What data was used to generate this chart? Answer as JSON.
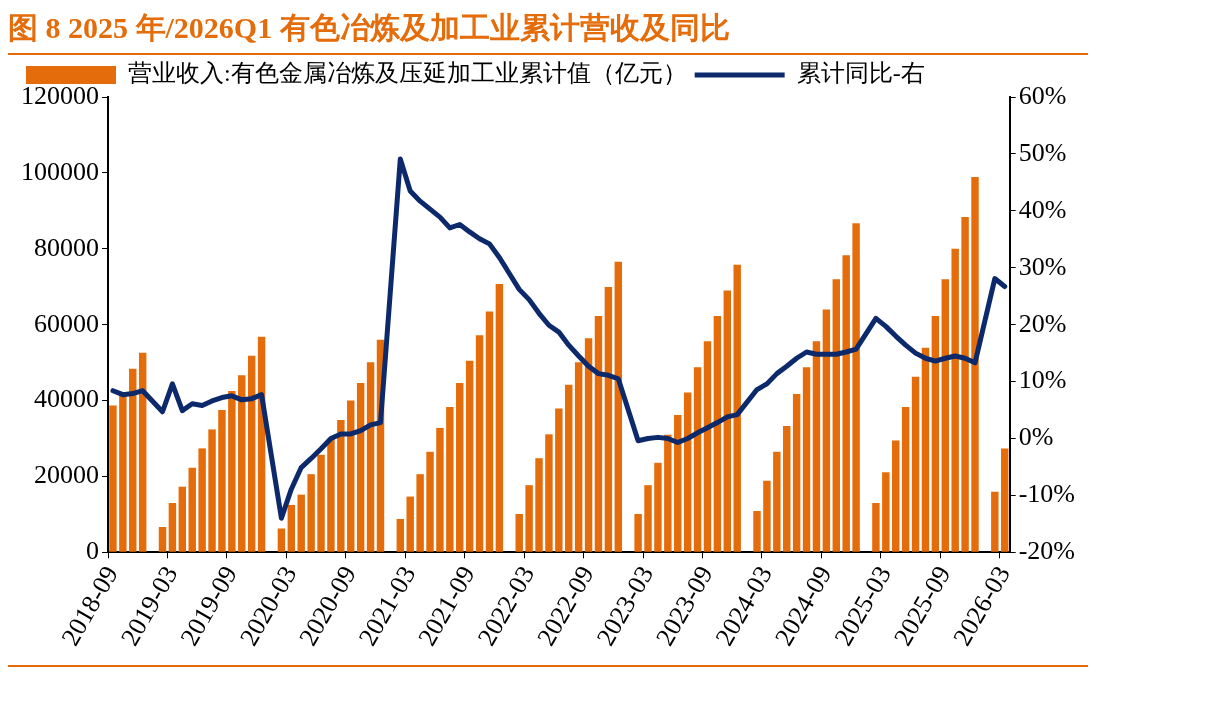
{
  "chart_data": {
    "type": "bar",
    "title": "图 8 2025 年/2026Q1 有色冶炼及加工业累计营收及同比",
    "categories": [
      "2018-09",
      null,
      null,
      null,
      null,
      null,
      "2019-03",
      null,
      null,
      null,
      null,
      null,
      "2019-09",
      null,
      null,
      null,
      null,
      null,
      "2020-03",
      null,
      null,
      null,
      null,
      null,
      "2020-09",
      null,
      null,
      null,
      null,
      null,
      "2021-03",
      null,
      null,
      null,
      null,
      null,
      "2021-09",
      null,
      null,
      null,
      null,
      null,
      "2022-03",
      null,
      null,
      null,
      null,
      null,
      "2022-09",
      null,
      null,
      null,
      null,
      null,
      "2023-03",
      null,
      null,
      null,
      null,
      null,
      "2023-09",
      null,
      null,
      null,
      null,
      null,
      "2024-03",
      null,
      null,
      null,
      null,
      null,
      "2024-09",
      null,
      null,
      null,
      null,
      null,
      "2025-03",
      null,
      null,
      null,
      null,
      null,
      "2025-09",
      null,
      null,
      null,
      null,
      null,
      "2026-03"
    ],
    "series": [
      {
        "name": "营业收入:有色金属冶炼及压延加工业累计值（亿元）",
        "color": "#e46c0a",
        "values": [
          38700,
          41300,
          48400,
          52600,
          null,
          6700,
          13000,
          17300,
          22300,
          27400,
          32400,
          37500,
          42500,
          46700,
          51800,
          56800,
          null,
          6300,
          12500,
          15200,
          20600,
          25700,
          29900,
          34900,
          40000,
          44600,
          50100,
          56000,
          null,
          8800,
          14700,
          20600,
          26500,
          32800,
          38300,
          44600,
          50500,
          57200,
          63500,
          70700,
          null,
          10100,
          17700,
          24800,
          31100,
          37900,
          44200,
          50100,
          56400,
          62300,
          69900,
          76600,
          null,
          10100,
          17700,
          23600,
          31000,
          36200,
          42100,
          48800,
          55600,
          62300,
          69000,
          75800,
          null,
          10900,
          18900,
          26500,
          33300,
          41700,
          48800,
          55600,
          64000,
          72000,
          78300,
          86700,
          null,
          13000,
          21100,
          29500,
          38300,
          46300,
          53900,
          62300,
          72000,
          80000,
          88400,
          98900,
          null,
          16000,
          27400
        ]
      },
      {
        "name": "累计同比-右",
        "type": "line",
        "axis": "y2",
        "color": "#0c2a6b",
        "values": [
          8.4,
          7.7,
          7.9,
          8.4,
          null,
          4.7,
          9.6,
          4.9,
          6.1,
          5.8,
          6.6,
          7.2,
          7.5,
          6.8,
          7.0,
          7.7,
          null,
          -14.0,
          -8.9,
          -5.1,
          -3.5,
          -1.8,
          0.0,
          0.8,
          0.8,
          1.4,
          2.4,
          2.8,
          null,
          49.1,
          43.5,
          41.7,
          40.3,
          38.9,
          37.0,
          37.6,
          36.3,
          35.1,
          34.2,
          31.8,
          null,
          26.2,
          24.4,
          22.0,
          19.9,
          18.7,
          16.4,
          14.5,
          12.7,
          11.4,
          11.1,
          10.5,
          null,
          -0.4,
          0.0,
          0.2,
          0.0,
          -0.7,
          0.0,
          1.0,
          1.9,
          2.8,
          3.8,
          4.2,
          null,
          8.6,
          9.6,
          11.4,
          12.7,
          14.1,
          15.2,
          14.8,
          14.8,
          14.8,
          15.2,
          15.7,
          null,
          21.1,
          19.7,
          18.0,
          16.4,
          15.0,
          14.1,
          13.6,
          14.1,
          14.5,
          14.1,
          13.3,
          null,
          28.1,
          26.7
        ]
      }
    ],
    "ylim": [
      0,
      120000
    ],
    "yticks": [
      0,
      20000,
      40000,
      60000,
      80000,
      100000,
      120000
    ],
    "y2lim": [
      -20,
      60
    ],
    "y2ticks": [
      {
        "value": -20,
        "label": "-20%"
      },
      {
        "value": -10,
        "label": "-10%"
      },
      {
        "value": 0,
        "label": "0%"
      },
      {
        "value": 10,
        "label": "10%"
      },
      {
        "value": 20,
        "label": "20%"
      },
      {
        "value": 30,
        "label": "30%"
      },
      {
        "value": 40,
        "label": "40%"
      },
      {
        "value": 50,
        "label": "50%"
      },
      {
        "value": 60,
        "label": "60%"
      }
    ],
    "legend": "top left",
    "grid": false,
    "marker": "none"
  }
}
